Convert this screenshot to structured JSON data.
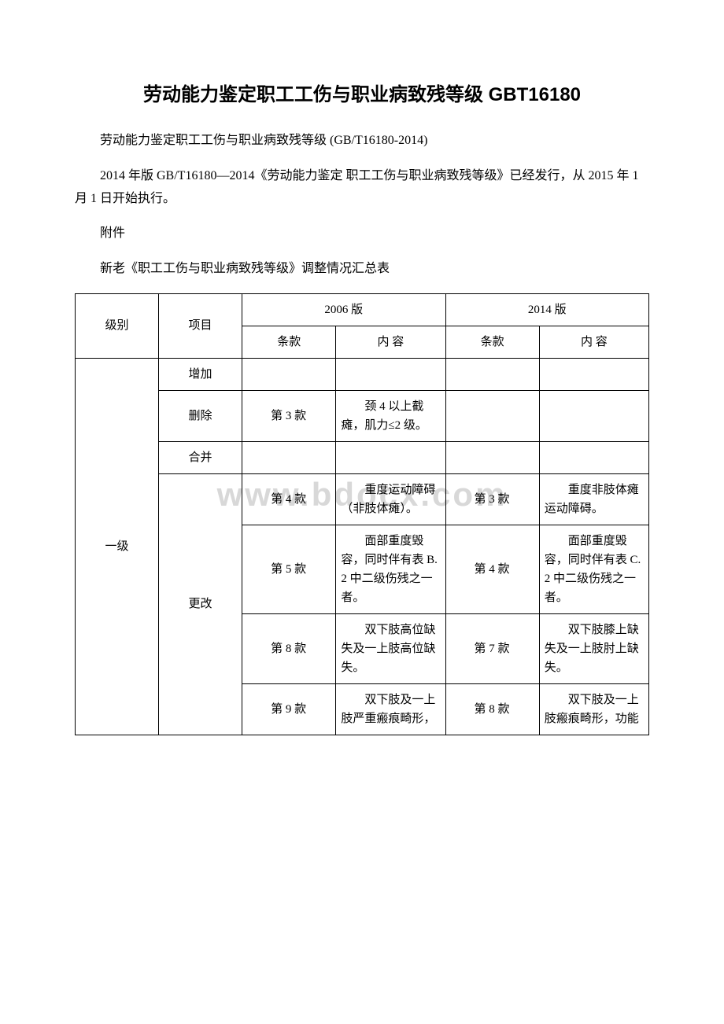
{
  "title": "劳动能力鉴定职工工伤与职业病致残等级 GBT16180",
  "para1": "劳动能力鉴定职工工伤与职业病致残等级 (GB/T16180-2014)",
  "para2": "2014 年版 GB/T16180—2014《劳动能力鉴定 职工工伤与职业病致残等级》已经发行，从 2015 年 1 月 1 日开始执行。",
  "para3": "附件",
  "para4": "新老《职工工伤与职业病致残等级》调整情况汇总表",
  "watermark": "www.bdocx.com",
  "header": {
    "level": "级别",
    "item": "项目",
    "ver2006": "2006 版",
    "ver2014": "2014 版",
    "clause": "条款",
    "content": "内 容"
  },
  "rows": {
    "level": "一级",
    "items": {
      "add": "增加",
      "del": "删除",
      "merge": "合并",
      "change": "更改"
    },
    "del": {
      "clause2006": "第 3 款",
      "content2006": "颈 4 以上截瘫，肌力≤2 级。"
    },
    "change1": {
      "clause2006": "第 4 款",
      "content2006": "重度运动障碍（非肢体瘫）。",
      "clause2014": "第 3 款",
      "content2014": "重度非肢体瘫运动障碍。"
    },
    "change2": {
      "clause2006": "第 5 款",
      "content2006": "面部重度毁容，同时伴有表 B. 2 中二级伤残之一者。",
      "clause2014": "第 4 款",
      "content2014": "面部重度毁容，同时伴有表 C. 2 中二级伤残之一者。"
    },
    "change3": {
      "clause2006": "第 8 款",
      "content2006": "双下肢高位缺失及一上肢高位缺失。",
      "clause2014": "第 7 款",
      "content2014": "双下肢膝上缺失及一上肢肘上缺失。"
    },
    "change4": {
      "clause2006": "第 9 款",
      "content2006": "双下肢及一上肢严重瘢痕畸形，",
      "clause2014": "第 8 款",
      "content2014": "双下肢及一上肢瘢痕畸形，功能"
    }
  }
}
